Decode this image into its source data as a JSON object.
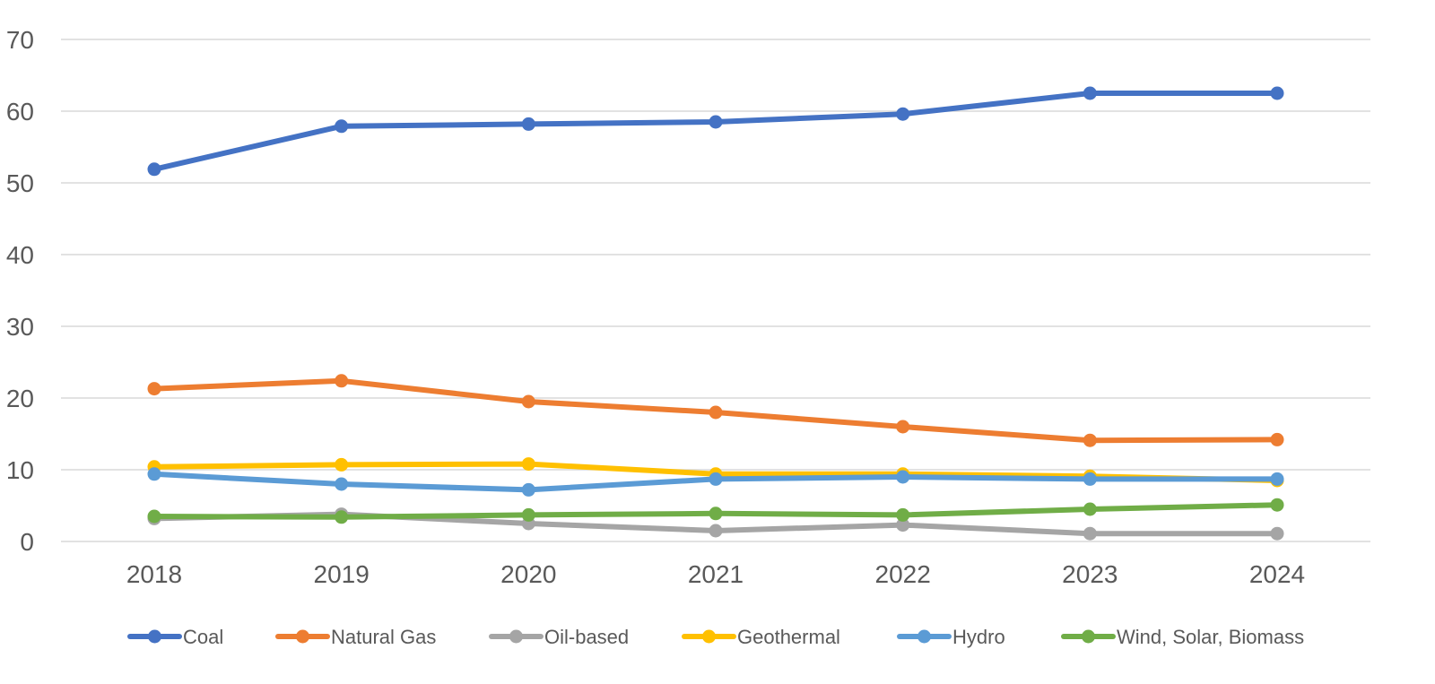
{
  "chart_data": {
    "type": "line",
    "title": "",
    "xlabel": "",
    "ylabel": "",
    "categories": [
      "2018",
      "2019",
      "2020",
      "2021",
      "2022",
      "2023",
      "2024"
    ],
    "ylim": [
      0,
      70
    ],
    "yticks": [
      0,
      10,
      20,
      30,
      40,
      50,
      60,
      70
    ],
    "grid": true,
    "legend_position": "bottom",
    "series": [
      {
        "name": "Coal",
        "color": "#4472C4",
        "values": [
          51.9,
          57.9,
          58.2,
          58.5,
          59.6,
          62.5,
          62.5
        ]
      },
      {
        "name": "Natural Gas",
        "color": "#ED7D31",
        "values": [
          21.3,
          22.4,
          19.5,
          18.0,
          16.0,
          14.1,
          14.2
        ]
      },
      {
        "name": "Oil-based",
        "color": "#A5A5A5",
        "values": [
          3.2,
          3.8,
          2.5,
          1.5,
          2.3,
          1.1,
          1.1
        ]
      },
      {
        "name": "Geothermal",
        "color": "#FFC000",
        "values": [
          10.4,
          10.7,
          10.8,
          9.4,
          9.4,
          9.1,
          8.5
        ]
      },
      {
        "name": "Hydro",
        "color": "#5B9BD5",
        "values": [
          9.4,
          8.0,
          7.2,
          8.7,
          9.0,
          8.7,
          8.7
        ]
      },
      {
        "name": "Wind, Solar, Biomass",
        "color": "#70AD47",
        "values": [
          3.5,
          3.4,
          3.7,
          3.9,
          3.7,
          4.5,
          5.1
        ]
      }
    ]
  }
}
